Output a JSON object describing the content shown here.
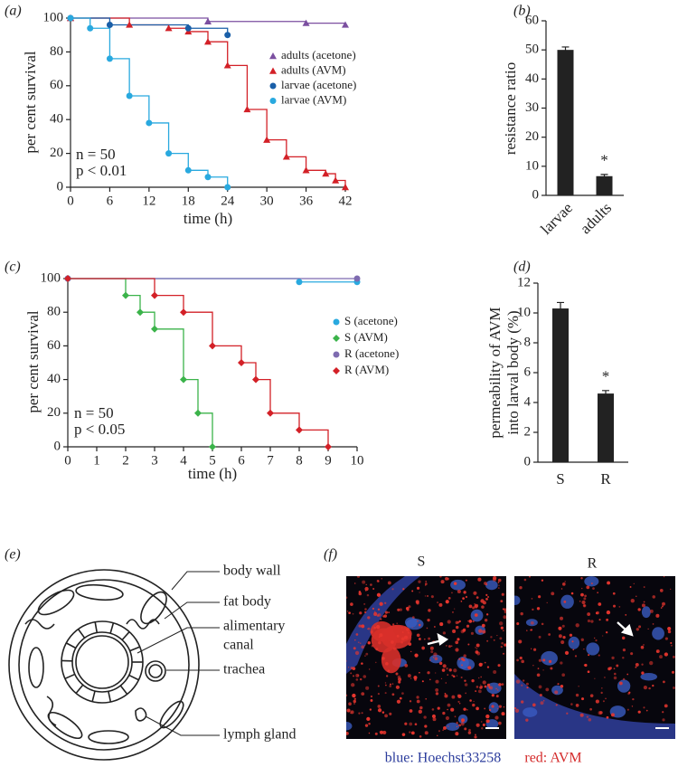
{
  "chart_data": [
    {
      "type": "line",
      "steps": true,
      "panel": "(a)",
      "xlabel": "time (h)",
      "ylabel": "per cent survival",
      "xlim": [
        0,
        42
      ],
      "xticks": [
        0,
        6,
        12,
        18,
        24,
        30,
        36,
        42
      ],
      "ylim": [
        0,
        100
      ],
      "yticks": [
        0,
        20,
        40,
        60,
        80,
        100
      ],
      "legend": "center right",
      "annotations": [
        "n = 50",
        "p < 0.01"
      ],
      "series": [
        {
          "name": "adults (acetone)",
          "color": "#7b4fa0",
          "marker": "triangle",
          "x": [
            0,
            21,
            36,
            42
          ],
          "values": [
            100,
            98,
            97,
            96
          ]
        },
        {
          "name": "adults (AVM)",
          "color": "#d32027",
          "marker": "triangle",
          "x": [
            0,
            9,
            15,
            18,
            21,
            24,
            27,
            30,
            33,
            36,
            39,
            40.5,
            42
          ],
          "values": [
            100,
            96,
            94,
            92,
            86,
            72,
            46,
            28,
            18,
            10,
            8,
            4,
            0
          ]
        },
        {
          "name": "larvae (acetone)",
          "color": "#1a5fa8",
          "marker": "circle",
          "x": [
            0,
            6,
            18,
            24
          ],
          "values": [
            100,
            96,
            94,
            90
          ]
        },
        {
          "name": "larvae (AVM)",
          "color": "#29a9df",
          "marker": "circle",
          "x": [
            0,
            3,
            6,
            9,
            12,
            15,
            18,
            21,
            24
          ],
          "values": [
            100,
            94,
            76,
            54,
            38,
            20,
            10,
            6,
            0
          ]
        }
      ]
    },
    {
      "type": "bar",
      "panel": "(b)",
      "ylabel": "resistance ratio",
      "categories": [
        "larvae",
        "adults"
      ],
      "values": [
        50,
        6.6
      ],
      "errors": [
        1,
        0.6
      ],
      "color": "#222222",
      "ylim": [
        0,
        60
      ],
      "yticks": [
        0,
        10,
        20,
        30,
        40,
        50,
        60
      ],
      "annotation": "*"
    },
    {
      "type": "line",
      "steps": true,
      "panel": "(c)",
      "xlabel": "time (h)",
      "ylabel": "per cent survival",
      "xlim": [
        0,
        10
      ],
      "xticks": [
        0,
        1,
        2,
        3,
        4,
        5,
        6,
        7,
        8,
        9,
        10
      ],
      "ylim": [
        0,
        100
      ],
      "yticks": [
        0,
        20,
        40,
        60,
        80,
        100
      ],
      "legend": "center right",
      "annotations": [
        "n = 50",
        "p < 0.05"
      ],
      "series": [
        {
          "name": "S (acetone)",
          "color": "#29a9df",
          "marker": "circle",
          "x": [
            0,
            8,
            10
          ],
          "values": [
            100,
            98,
            98
          ]
        },
        {
          "name": "S (AVM)",
          "color": "#3bb34a",
          "marker": "diamond",
          "x": [
            0,
            2,
            2.5,
            3,
            4,
            4.5,
            5
          ],
          "values": [
            100,
            90,
            80,
            70,
            40,
            20,
            0
          ]
        },
        {
          "name": "R (acetone)",
          "color": "#7e6bb0",
          "marker": "circle",
          "x": [
            0,
            10
          ],
          "values": [
            100,
            100
          ]
        },
        {
          "name": "R (AVM)",
          "color": "#d32027",
          "marker": "diamond",
          "x": [
            0,
            3,
            4,
            5,
            6,
            6.5,
            7,
            8,
            9
          ],
          "values": [
            100,
            90,
            80,
            60,
            50,
            40,
            20,
            10,
            0
          ]
        }
      ]
    },
    {
      "type": "bar",
      "panel": "(d)",
      "ylabel": [
        "permeability of AVM",
        "into larval body (%)"
      ],
      "categories": [
        "S",
        "R"
      ],
      "values": [
        10.3,
        4.6
      ],
      "errors": [
        0.4,
        0.2
      ],
      "color": "#222222",
      "ylim": [
        0,
        12
      ],
      "yticks": [
        0,
        2,
        4,
        6,
        8,
        10,
        12
      ],
      "annotation": "*"
    }
  ],
  "diagram": {
    "panel": "(e)",
    "labels": [
      [
        "body wall"
      ],
      [
        "fat body"
      ],
      [
        "alimentary",
        "canal"
      ],
      [
        "trachea"
      ],
      [
        "lymph gland"
      ]
    ]
  },
  "micrograph": {
    "panel": "(f)",
    "image_labels": [
      "S",
      "R"
    ],
    "legend": [
      {
        "text": "blue: Hoechst33258",
        "color": "#2b3c9c"
      },
      {
        "text": "red: AVM",
        "color": "#d42a2a"
      }
    ]
  }
}
